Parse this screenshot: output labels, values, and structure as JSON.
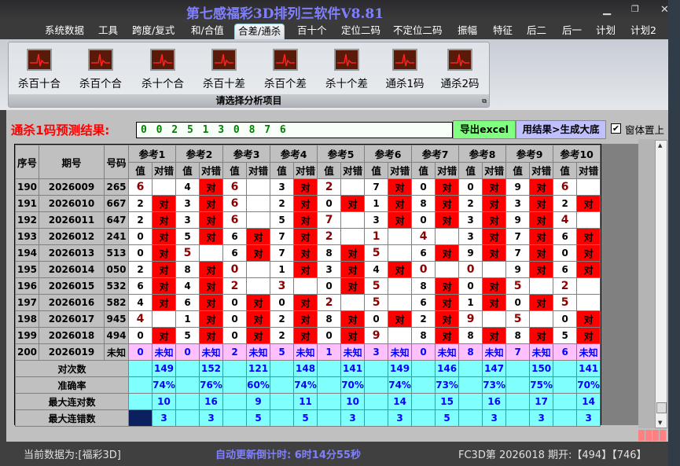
{
  "window": {
    "title": "第七感福彩3D排列三软件V8.81"
  },
  "menu": [
    "系统数据",
    "工具",
    "跨度/复式",
    "和/合值",
    "合差/通杀",
    "百十个",
    "定位二码",
    "不定位二码",
    "振幅",
    "特征",
    "后二",
    "后一",
    "计划",
    "计划2"
  ],
  "active_menu": "合差/通杀",
  "ribbon": {
    "tools": [
      "杀百十合",
      "杀百个合",
      "杀十个合",
      "杀百十差",
      "杀百个差",
      "杀十个差",
      "通杀1码",
      "通杀2码"
    ],
    "group_caption": "请选择分析项目"
  },
  "prediction": {
    "label": "通杀1码预测结果:",
    "value": "0 0 2 5 1 3 0 8 7 6",
    "export_button": "导出excel",
    "generate_button": "用结果>生成大底",
    "topmost_label": "窗体置上",
    "topmost_checked": true
  },
  "table": {
    "headers": {
      "seq": "序号",
      "period": "期号",
      "number": "号码",
      "refs": [
        "参考1",
        "参考2",
        "参考3",
        "参考4",
        "参考5",
        "参考6",
        "参考7",
        "参考8",
        "参考9",
        "参考10"
      ],
      "value": "值",
      "result": "对错"
    },
    "hit_label": "对",
    "unknown_label": "未知",
    "rows": [
      {
        "seq": "190",
        "period": "2026009",
        "number": "265",
        "vals": [
          6,
          4,
          6,
          3,
          2,
          7,
          0,
          0,
          9,
          6
        ],
        "hits": [
          0,
          1,
          0,
          1,
          0,
          1,
          1,
          1,
          1,
          0
        ]
      },
      {
        "seq": "191",
        "period": "2026010",
        "number": "667",
        "vals": [
          2,
          3,
          6,
          2,
          0,
          1,
          8,
          2,
          3,
          2
        ],
        "hits": [
          1,
          1,
          0,
          1,
          1,
          1,
          1,
          1,
          1,
          1
        ]
      },
      {
        "seq": "192",
        "period": "2026011",
        "number": "647",
        "vals": [
          2,
          3,
          6,
          5,
          7,
          3,
          0,
          3,
          9,
          4
        ],
        "hits": [
          1,
          1,
          0,
          1,
          0,
          1,
          1,
          1,
          1,
          0
        ]
      },
      {
        "seq": "193",
        "period": "2026012",
        "number": "241",
        "vals": [
          0,
          5,
          6,
          7,
          2,
          1,
          4,
          3,
          7,
          6
        ],
        "hits": [
          1,
          1,
          1,
          1,
          0,
          0,
          0,
          1,
          1,
          1
        ]
      },
      {
        "seq": "194",
        "period": "2026013",
        "number": "513",
        "vals": [
          0,
          5,
          6,
          7,
          8,
          5,
          6,
          9,
          7,
          0
        ],
        "hits": [
          1,
          0,
          1,
          1,
          1,
          0,
          1,
          1,
          1,
          1
        ]
      },
      {
        "seq": "195",
        "period": "2026014",
        "number": "050",
        "vals": [
          2,
          8,
          0,
          1,
          3,
          4,
          0,
          0,
          9,
          6
        ],
        "hits": [
          1,
          1,
          0,
          1,
          1,
          1,
          0,
          0,
          1,
          1
        ]
      },
      {
        "seq": "196",
        "period": "2026015",
        "number": "532",
        "vals": [
          6,
          4,
          2,
          3,
          0,
          5,
          8,
          0,
          5,
          2
        ],
        "hits": [
          1,
          1,
          0,
          0,
          1,
          0,
          1,
          1,
          0,
          0
        ]
      },
      {
        "seq": "197",
        "period": "2026016",
        "number": "582",
        "vals": [
          4,
          6,
          0,
          0,
          2,
          5,
          6,
          1,
          0,
          5
        ],
        "hits": [
          1,
          1,
          1,
          1,
          0,
          0,
          1,
          1,
          1,
          0
        ]
      },
      {
        "seq": "198",
        "period": "2026017",
        "number": "945",
        "vals": [
          4,
          1,
          0,
          2,
          8,
          0,
          2,
          9,
          5,
          0
        ],
        "hits": [
          0,
          1,
          1,
          1,
          1,
          1,
          1,
          0,
          0,
          1
        ]
      },
      {
        "seq": "199",
        "period": "2026018",
        "number": "494",
        "vals": [
          0,
          5,
          0,
          2,
          0,
          9,
          8,
          8,
          8,
          5
        ],
        "hits": [
          1,
          1,
          1,
          1,
          1,
          0,
          1,
          1,
          1,
          1
        ]
      }
    ],
    "pending": {
      "seq": "200",
      "period": "2026019",
      "number": "未知",
      "vals": [
        0,
        0,
        2,
        5,
        1,
        3,
        0,
        8,
        7,
        6
      ]
    },
    "summary": [
      {
        "label": "对次数",
        "values": [
          "149",
          "152",
          "121",
          "148",
          "141",
          "149",
          "146",
          "147",
          "150",
          "141"
        ]
      },
      {
        "label": "准确率",
        "values": [
          "74%",
          "76%",
          "60%",
          "74%",
          "70%",
          "74%",
          "73%",
          "73%",
          "75%",
          "70%"
        ]
      },
      {
        "label": "最大连对数",
        "values": [
          "10",
          "16",
          "9",
          "11",
          "10",
          "14",
          "15",
          "16",
          "17",
          "14"
        ]
      },
      {
        "label": "最大连错数",
        "values": [
          "3",
          "3",
          "5",
          "5",
          "3",
          "3",
          "5",
          "3",
          "3",
          "3"
        ]
      }
    ]
  },
  "status": {
    "data_source": "当前数据为:[福彩3D]",
    "countdown": "自动更新倒计时: 6时14分55秒",
    "draw_info": "FC3D第 2026018 期开:【494】【746】"
  },
  "colors": {
    "hit": "#ff0000",
    "miss_text": "#8b0000",
    "pending_row": "#ffc0ff",
    "summary": "#80ffff",
    "title": "#8080ff"
  }
}
